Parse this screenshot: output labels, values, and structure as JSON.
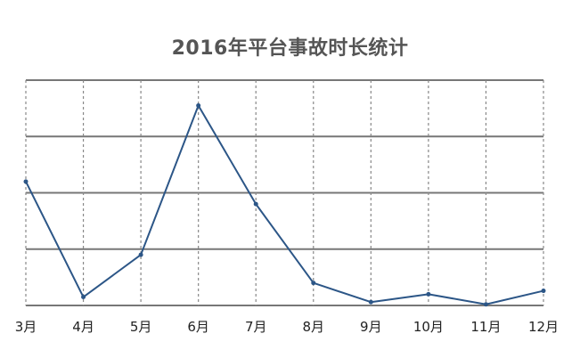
{
  "chart_data": {
    "type": "line",
    "title": "2016年平台事故时长统计",
    "categories": [
      "3月",
      "4月",
      "5月",
      "6月",
      "7月",
      "8月",
      "9月",
      "10月",
      "11月",
      "12月"
    ],
    "series": [
      {
        "values": [
          2.2,
          0.15,
          0.9,
          3.55,
          1.8,
          0.4,
          0.06,
          0.2,
          0.02,
          0.26
        ]
      }
    ],
    "xlabel": "",
    "ylabel": "",
    "ylim": [
      0,
      4
    ],
    "grid": {
      "horizontal": "solid",
      "vertical": "dashed"
    },
    "line_color": "#2c5687",
    "grid_color": "#777777",
    "vgrid_color": "#888888"
  }
}
